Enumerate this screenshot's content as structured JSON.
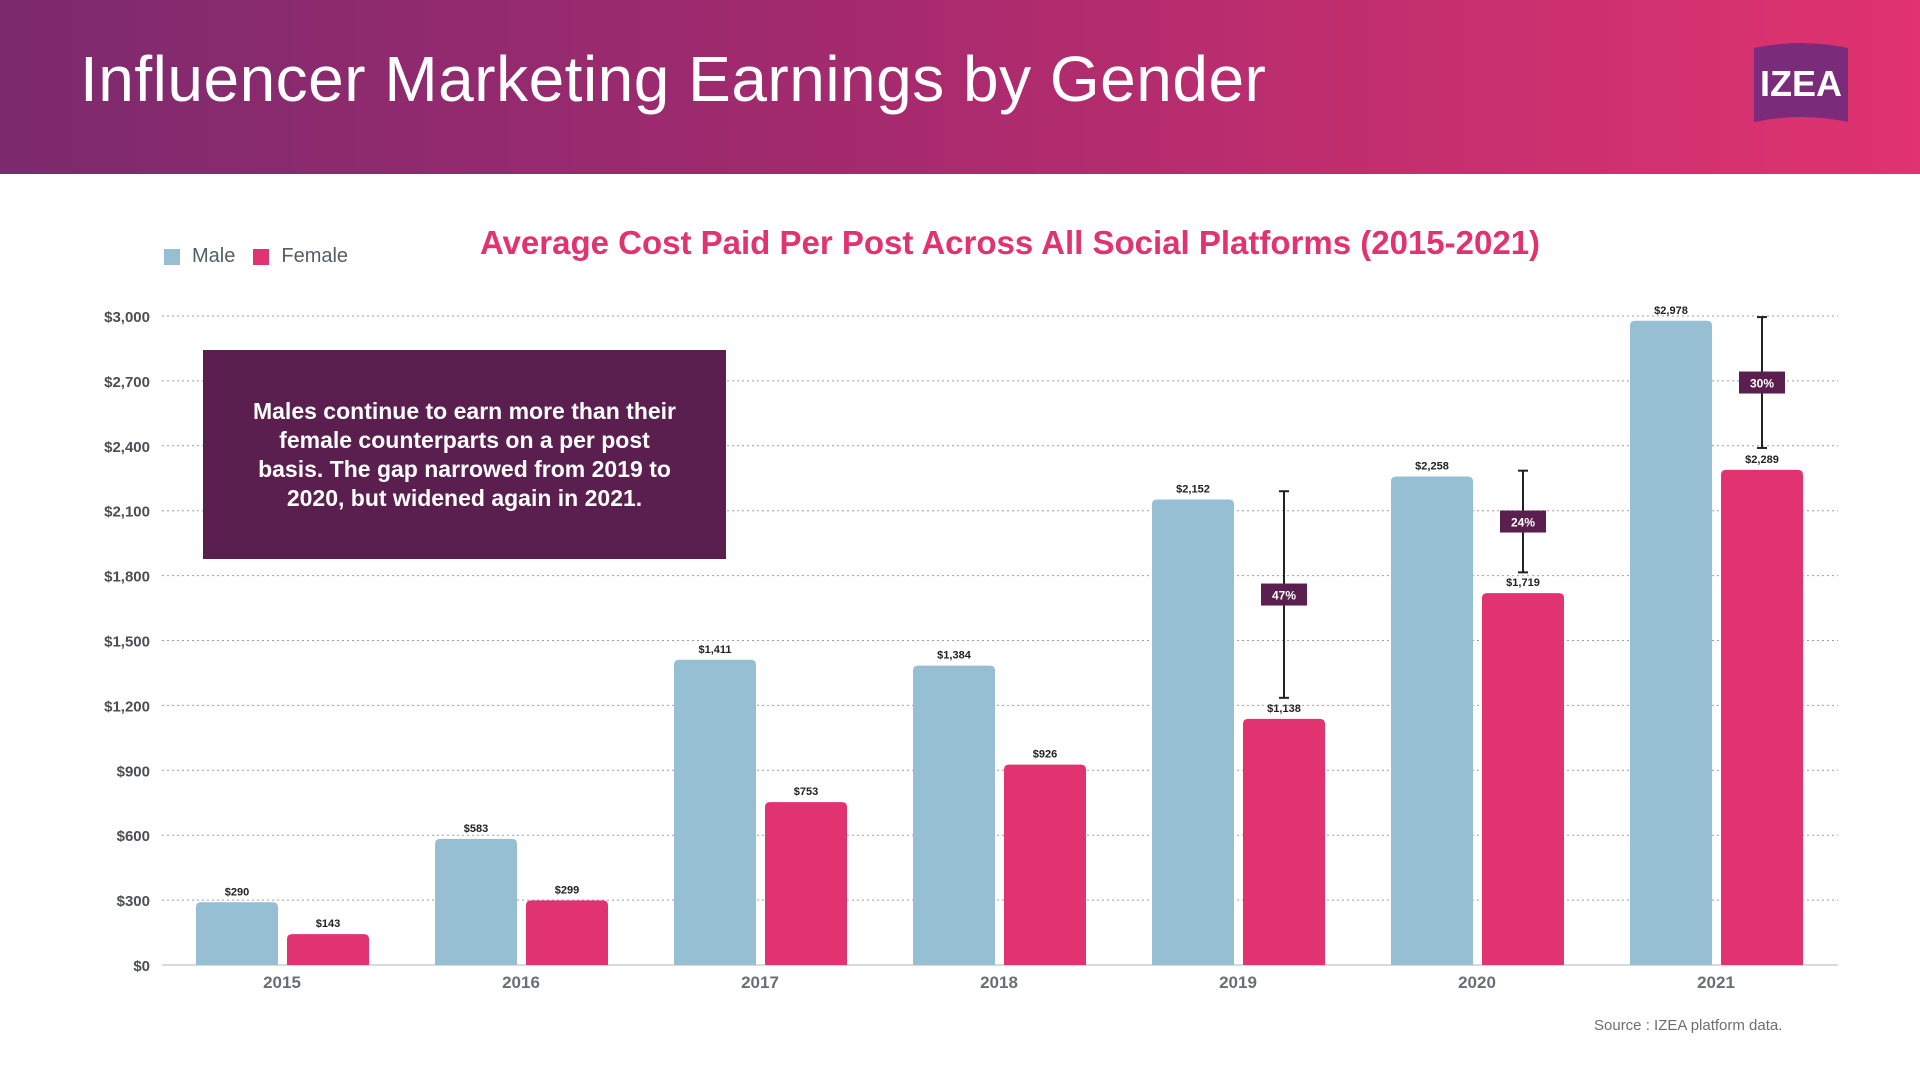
{
  "header": {
    "title": "Influencer Marketing Earnings by Gender",
    "logo_text": "IZEA"
  },
  "legend": {
    "male_label": "Male",
    "female_label": "Female"
  },
  "callout": {
    "text": "Males continue to earn more than their female counterparts on a per post basis. The gap narrowed from 2019 to 2020, but widened again in 2021."
  },
  "source": "Source : IZEA platform data.",
  "colors": {
    "male": "#96bfd3",
    "female": "#e0336f",
    "header_start": "#7d2a6e",
    "header_end": "#e0336f",
    "callout_bg": "#5a1f4e",
    "gap_label_bg": "#5a1f4e"
  },
  "chart_data": {
    "type": "bar",
    "title": "Average Cost Paid Per Post Across All Social Platforms (2015-2021)",
    "categories": [
      "2015",
      "2016",
      "2017",
      "2018",
      "2019",
      "2020",
      "2021"
    ],
    "series": [
      {
        "name": "Male",
        "values": [
          290,
          583,
          1411,
          1384,
          2152,
          2258,
          2978
        ],
        "labels": [
          "$290",
          "$583",
          "$1,411",
          "$1,384",
          "$2,152",
          "$2,258",
          "$2,978"
        ]
      },
      {
        "name": "Female",
        "values": [
          143,
          299,
          753,
          926,
          1138,
          1719,
          2289
        ],
        "labels": [
          "$143",
          "$299",
          "$753",
          "$926",
          "$1,138",
          "$1,719",
          "$2,289"
        ]
      }
    ],
    "gaps": [
      {
        "category": "2019",
        "label": "47%",
        "from": 1235,
        "to": 2190
      },
      {
        "category": "2020",
        "label": "24%",
        "from": 1815,
        "to": 2285
      },
      {
        "category": "2021",
        "label": "30%",
        "from": 2390,
        "to": 2995
      }
    ],
    "ylim": [
      0,
      3000
    ],
    "yticks": [
      0,
      300,
      600,
      900,
      1200,
      1500,
      1800,
      2100,
      2400,
      2700,
      3000
    ],
    "ytick_labels": [
      "$0",
      "$300",
      "$600",
      "$900",
      "$1,200",
      "$1,500",
      "$1,800",
      "$2,100",
      "$2,400",
      "$2,700",
      "$3,000"
    ],
    "grid": true,
    "legend_position": "top-left"
  }
}
